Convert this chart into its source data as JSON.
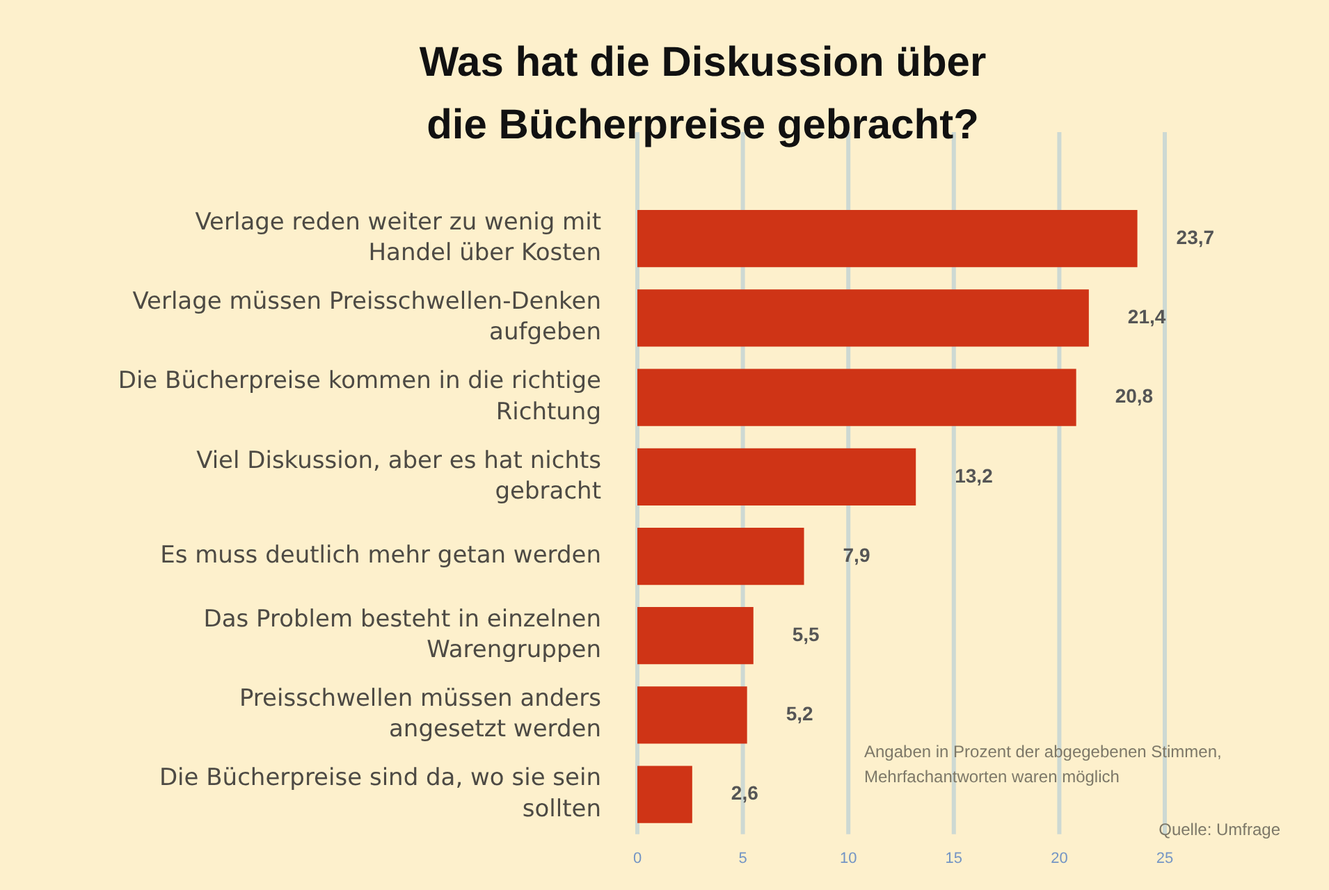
{
  "chart_data": {
    "type": "bar",
    "orientation": "horizontal",
    "title": "Was hat die Diskussion über die Bücherpreise gebracht?",
    "categories": [
      "Verlage reden weiter zu wenig mit Handel über Kosten",
      "Verlage müssen Preisschwellen-Denken aufgeben",
      "Die Bücherpreise kommen in die richtige Richtung",
      "Viel Diskussion, aber es hat nichts gebracht",
      "Es muss deutlich mehr getan werden",
      "Das Problem besteht in einzelnen Warengruppen",
      "Preisschwellen müssen anders angesetzt werden",
      "Die Bücherpreise sind da, wo sie sein sollten"
    ],
    "values": [
      23.7,
      21.4,
      20.8,
      13.2,
      7.9,
      5.5,
      5.2,
      2.6
    ],
    "value_labels": [
      "23,7",
      "21,4",
      "20,8",
      "13,2",
      "7,9",
      "5,5",
      "5,2",
      "2,6"
    ],
    "color": "#cf3416",
    "xlim": [
      0,
      25
    ],
    "xticks": [
      0,
      5,
      10,
      15,
      20,
      25
    ],
    "grid": "x",
    "legend": false,
    "annotations": [
      "Angaben in Prozent der abgegebenen Stimmen, Mehrfachantworten waren möglich",
      "Quelle: Umfrage"
    ]
  }
}
